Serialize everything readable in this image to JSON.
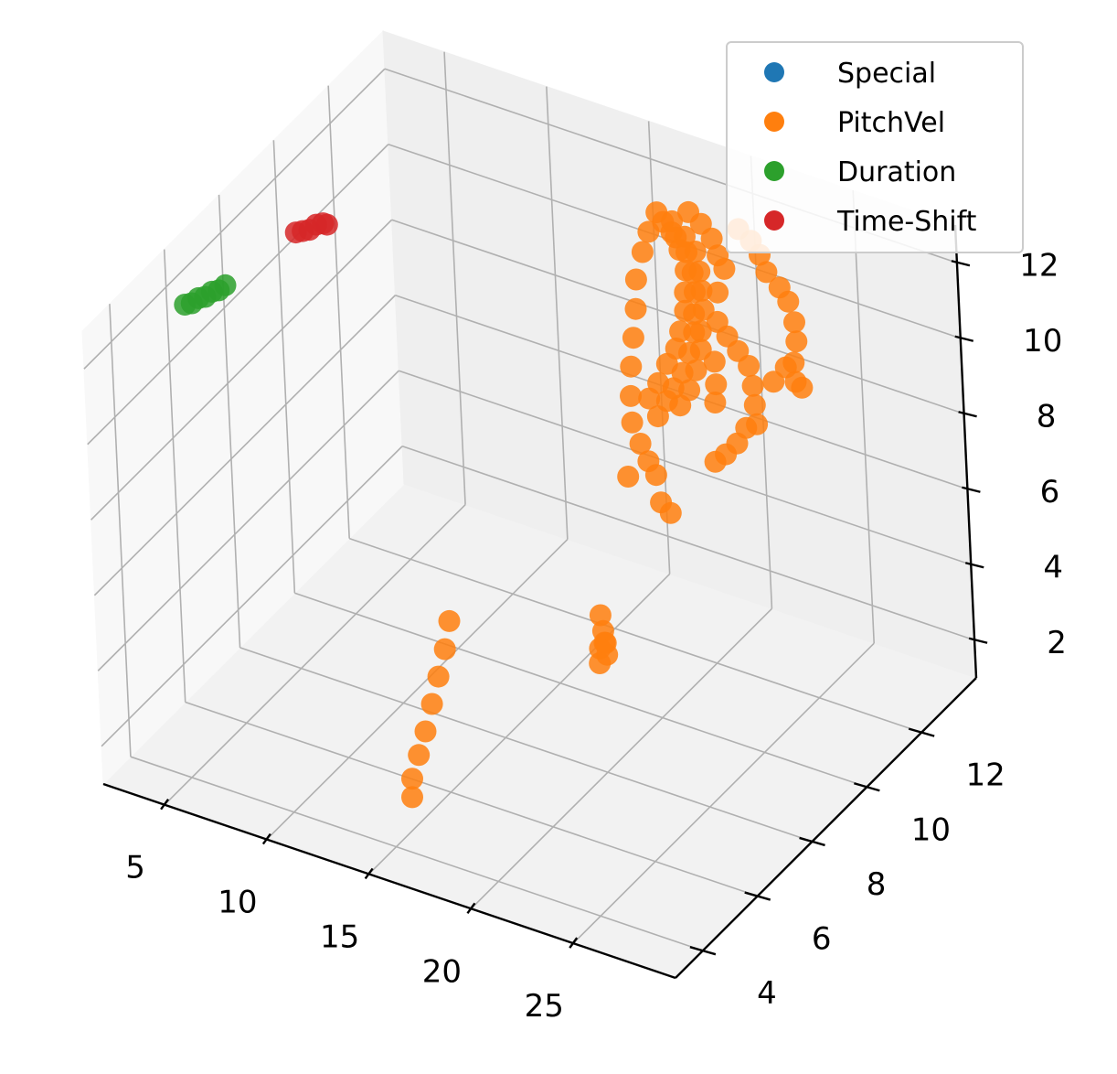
{
  "chart_data": {
    "type": "scatter3d",
    "title": "",
    "xlabel": "",
    "ylabel": "",
    "zlabel": "",
    "xlim": [
      2,
      30
    ],
    "ylim": [
      3,
      14
    ],
    "zlim": [
      1,
      13
    ],
    "x_ticks": [
      "5",
      "10",
      "15",
      "20",
      "25"
    ],
    "y_ticks": [
      "4",
      "6",
      "8",
      "10",
      "12"
    ],
    "z_ticks": [
      "2",
      "4",
      "6",
      "8",
      "10",
      "12"
    ],
    "grid": true,
    "legend_position": "top-right",
    "series": [
      {
        "name": "Special",
        "color": "#1f77b4",
        "points": []
      },
      {
        "name": "PitchVel",
        "color": "#ff7f0e",
        "points": [
          [
            16.6,
            13.0,
            11.6
          ],
          [
            17.2,
            13.1,
            11.4
          ],
          [
            17.8,
            13.1,
            11.1
          ],
          [
            18.3,
            13.1,
            10.8
          ],
          [
            18.6,
            13.0,
            10.4
          ],
          [
            18.8,
            12.9,
            10.0
          ],
          [
            19.0,
            12.8,
            9.6
          ],
          [
            19.1,
            12.6,
            9.2
          ],
          [
            19.2,
            12.5,
            8.8
          ],
          [
            19.2,
            12.3,
            8.4
          ],
          [
            19.1,
            12.1,
            8.0
          ],
          [
            18.9,
            11.9,
            7.7
          ],
          [
            16.9,
            13.0,
            11.4
          ],
          [
            17.5,
            13.0,
            11.1
          ],
          [
            18.0,
            13.0,
            10.8
          ],
          [
            18.4,
            12.9,
            10.4
          ],
          [
            18.6,
            12.8,
            10.0
          ],
          [
            18.8,
            12.6,
            9.6
          ],
          [
            18.9,
            12.5,
            9.2
          ],
          [
            18.9,
            12.3,
            8.8
          ],
          [
            18.8,
            12.1,
            8.4
          ],
          [
            18.6,
            11.9,
            8.1
          ],
          [
            18.4,
            11.8,
            7.8
          ],
          [
            18.2,
            11.6,
            7.5
          ],
          [
            17.3,
            13.0,
            11.2
          ],
          [
            17.8,
            12.9,
            10.9
          ],
          [
            18.2,
            12.8,
            10.5
          ],
          [
            18.4,
            12.6,
            10.1
          ],
          [
            18.5,
            12.5,
            9.7
          ],
          [
            18.5,
            12.3,
            9.3
          ],
          [
            18.4,
            12.2,
            8.9
          ],
          [
            18.2,
            12.0,
            8.6
          ],
          [
            18.0,
            11.8,
            8.2
          ],
          [
            17.8,
            11.6,
            7.9
          ],
          [
            17.9,
            13.2,
            11.7
          ],
          [
            18.5,
            13.2,
            11.5
          ],
          [
            19.0,
            13.2,
            11.2
          ],
          [
            19.4,
            13.1,
            10.9
          ],
          [
            19.7,
            13.1,
            10.6
          ],
          [
            20.2,
            13.3,
            11.6
          ],
          [
            20.8,
            13.3,
            11.4
          ],
          [
            21.2,
            13.3,
            11.1
          ],
          [
            21.5,
            13.3,
            10.7
          ],
          [
            19.6,
            12.9,
            10.1
          ],
          [
            19.8,
            12.7,
            9.5
          ],
          [
            20.4,
            12.6,
            9.3
          ],
          [
            20.9,
            12.6,
            9.0
          ],
          [
            21.4,
            12.6,
            8.7
          ],
          [
            21.7,
            12.5,
            8.3
          ],
          [
            21.9,
            12.4,
            7.9
          ],
          [
            22.1,
            12.3,
            7.5
          ],
          [
            20.0,
            12.4,
            8.7
          ],
          [
            20.3,
            12.2,
            8.3
          ],
          [
            20.5,
            12.0,
            8.0
          ],
          [
            22.4,
            13.1,
            10.6
          ],
          [
            22.8,
            13.1,
            10.3
          ],
          [
            23.2,
            13.0,
            9.9
          ],
          [
            23.4,
            12.9,
            9.5
          ],
          [
            23.5,
            12.7,
            9.1
          ],
          [
            23.7,
            12.6,
            8.7
          ],
          [
            24.0,
            12.6,
            8.6
          ],
          [
            23.1,
            12.7,
            8.9
          ],
          [
            22.6,
            12.6,
            8.5
          ],
          [
            21.7,
            12.2,
            7.4
          ],
          [
            21.5,
            12.0,
            7.1
          ],
          [
            21.2,
            11.8,
            6.9
          ],
          [
            20.8,
            11.7,
            6.7
          ],
          [
            16.2,
            12.4,
            9.4
          ],
          [
            16.3,
            12.2,
            8.8
          ],
          [
            16.4,
            12.0,
            8.2
          ],
          [
            16.6,
            11.8,
            7.6
          ],
          [
            16.9,
            11.6,
            7.1
          ],
          [
            17.4,
            11.5,
            6.7
          ],
          [
            17.9,
            11.4,
            6.4
          ],
          [
            18.4,
            11.3,
            6.2
          ],
          [
            16.0,
            12.6,
            10.0
          ],
          [
            16.1,
            12.8,
            10.6
          ],
          [
            16.3,
            12.9,
            11.1
          ],
          [
            17.0,
            11.3,
            5.9
          ],
          [
            19.0,
            11.0,
            5.8
          ],
          [
            19.6,
            10.9,
            5.7
          ],
          [
            14.6,
            6.5,
            5.1
          ],
          [
            14.6,
            6.3,
            4.5
          ],
          [
            14.5,
            6.1,
            3.9
          ],
          [
            14.4,
            5.9,
            3.3
          ],
          [
            14.3,
            5.7,
            2.7
          ],
          [
            14.2,
            5.5,
            2.2
          ],
          [
            14.1,
            5.3,
            1.7
          ],
          [
            14.2,
            5.2,
            1.3
          ],
          [
            25.4,
            4.2,
            8.9
          ],
          [
            25.5,
            4.2,
            8.5
          ],
          [
            25.4,
            4.3,
            8.1
          ],
          [
            25.5,
            4.3,
            7.8
          ],
          [
            25.6,
            4.2,
            8.2
          ],
          [
            25.3,
            4.2,
            8.0
          ],
          [
            25.4,
            4.1,
            7.7
          ]
        ]
      },
      {
        "name": "Duration",
        "color": "#2ca02c",
        "points": [
          [
            2.9,
            6.0,
            11.7
          ],
          [
            3.1,
            6.1,
            11.7
          ],
          [
            3.3,
            6.2,
            11.8
          ],
          [
            3.5,
            6.3,
            11.8
          ],
          [
            3.7,
            6.4,
            11.9
          ],
          [
            3.9,
            6.5,
            11.9
          ],
          [
            4.1,
            6.6,
            12.0
          ]
        ]
      },
      {
        "name": "Time-Shift",
        "color": "#d62728",
        "points": [
          [
            4.6,
            8.8,
            11.9
          ],
          [
            4.8,
            8.9,
            11.9
          ],
          [
            5.0,
            9.0,
            11.9
          ],
          [
            5.2,
            9.1,
            12.0
          ],
          [
            5.4,
            9.2,
            12.0
          ],
          [
            5.6,
            9.2,
            12.0
          ]
        ]
      }
    ]
  }
}
